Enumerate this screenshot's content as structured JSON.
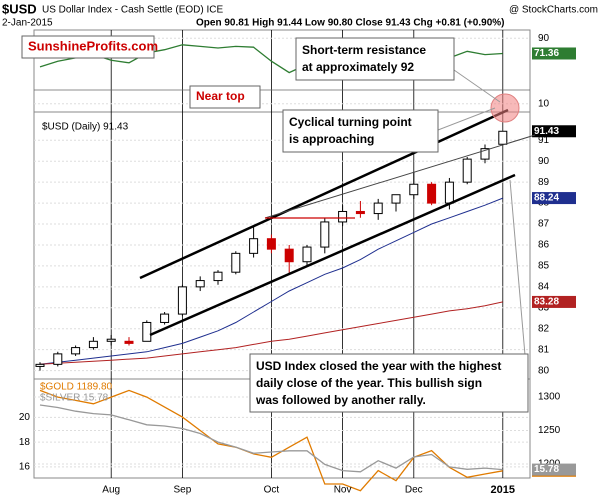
{
  "chart_data": [
    {
      "type": "line",
      "ylim": [
        0,
        100
      ],
      "yticks": [
        10,
        90
      ],
      "series": [
        {
          "color": "#2e7d32",
          "values": [
            55,
            62,
            66,
            70,
            63,
            60,
            72,
            76,
            82,
            80,
            78,
            80,
            79,
            62,
            48,
            58,
            70,
            74,
            66,
            70,
            72,
            74,
            55,
            66,
            74,
            70,
            71.36
          ]
        }
      ]
    },
    {
      "type": "candlestick",
      "title": "$USD",
      "subtitle": "US Dollar Index - Cash Settle (EOD) ICE",
      "date": "2-Jan-2015",
      "summary": "Open 90.81 High 91.44 Low 90.80 Close 91.43 Chg +0.81 (+0.90%)",
      "credit": "@ StockCharts.com",
      "legend": "$USD (Daily) 91.43",
      "up_color": "#000000",
      "down_color": "#cc0000",
      "open": [
        80.2,
        80.3,
        80.8,
        81.1,
        81.4,
        81.4,
        81.4,
        82.3,
        82.7,
        84.0,
        84.3,
        84.7,
        85.6,
        86.3,
        85.8,
        85.2,
        85.9,
        87.1,
        87.6,
        87.5,
        88.0,
        88.4,
        88.9,
        88.0,
        89.0,
        90.1,
        90.81
      ],
      "high": [
        80.4,
        80.9,
        81.2,
        81.6,
        81.7,
        81.6,
        82.4,
        82.8,
        84.1,
        84.5,
        84.8,
        85.7,
        86.9,
        86.5,
        86.0,
        86.0,
        87.3,
        87.9,
        88.1,
        88.2,
        88.4,
        89.5,
        89.0,
        89.2,
        90.2,
        90.8,
        91.44
      ],
      "low": [
        80.0,
        80.2,
        80.7,
        81.0,
        81.2,
        81.2,
        81.4,
        82.2,
        82.6,
        83.8,
        84.1,
        84.6,
        85.4,
        85.6,
        84.6,
        85.0,
        85.6,
        86.9,
        87.3,
        87.2,
        87.6,
        88.2,
        87.9,
        87.7,
        88.9,
        89.9,
        90.8
      ],
      "close": [
        80.3,
        80.8,
        81.1,
        81.4,
        81.5,
        81.3,
        82.3,
        82.7,
        84.0,
        84.3,
        84.7,
        85.6,
        86.3,
        85.8,
        85.2,
        85.9,
        87.1,
        87.6,
        87.5,
        88.0,
        88.4,
        88.9,
        88.0,
        89.0,
        90.1,
        90.6,
        91.43
      ],
      "overlays": [
        {
          "color": "#1f2f8f",
          "values": [
            80.3,
            80.4,
            80.5,
            80.6,
            80.7,
            80.8,
            80.9,
            81.1,
            81.3,
            81.6,
            81.9,
            82.3,
            82.8,
            83.3,
            83.8,
            84.2,
            84.6,
            84.9,
            85.3,
            85.8,
            86.2,
            86.6,
            87.0,
            87.3,
            87.6,
            87.9,
            88.24
          ]
        },
        {
          "color": "#b22222",
          "values": [
            80.3,
            80.35,
            80.4,
            80.45,
            80.5,
            80.55,
            80.6,
            80.7,
            80.8,
            80.9,
            81.0,
            81.1,
            81.25,
            81.4,
            81.5,
            81.65,
            81.8,
            81.95,
            82.1,
            82.25,
            82.4,
            82.55,
            82.7,
            82.85,
            82.95,
            83.1,
            83.28
          ]
        }
      ],
      "ylim": [
        79.6,
        92.35
      ],
      "yticks": [
        80,
        81,
        82,
        83,
        84,
        85,
        86,
        87,
        88,
        89,
        90,
        91
      ],
      "annotations": [
        [
          "SunshineProfits.com"
        ],
        [
          "Short-term resistance",
          "at approximately 92"
        ],
        [
          "Near top"
        ],
        [
          "Cyclical turning point",
          "is approaching"
        ],
        [
          "USD Index closed the year with the highest",
          "daily close of the year. This bullish sign",
          "was followed by another rally."
        ]
      ]
    },
    {
      "type": "line",
      "categories": [
        null,
        null,
        null,
        null,
        "Aug",
        null,
        null,
        null,
        "Sep",
        null,
        null,
        null,
        null,
        "Oct",
        null,
        null,
        null,
        "Nov",
        null,
        null,
        null,
        "Dec",
        null,
        null,
        null,
        null,
        "2015"
      ],
      "ylim": [
        15.1,
        23.1
      ],
      "yticks": [
        16,
        18,
        20
      ],
      "y2lim": [
        1179,
        1327
      ],
      "y2ticks": [
        1200,
        1250,
        1300
      ],
      "series": [
        {
          "name": "$GOLD 1189.80",
          "color": "#e07b00",
          "axis": "y2",
          "values": [
            1310,
            1300,
            1295,
            1290,
            1300,
            1310,
            1300,
            1285,
            1270,
            1250,
            1230,
            1225,
            1215,
            1210,
            1225,
            1240,
            1170,
            1170,
            1160,
            1190,
            1175,
            1210,
            1220,
            1195,
            1180,
            1185,
            1189.8
          ],
          "value_labels": [
            null,
            null,
            null,
            null,
            null,
            null,
            null,
            null,
            null,
            null,
            null,
            null,
            null,
            null,
            null,
            null,
            null,
            null,
            null,
            null,
            null,
            null,
            null,
            null,
            null,
            null,
            "1189.80"
          ]
        },
        {
          "name": "$SILVER 15.78",
          "color": "#999999",
          "values": [
            21,
            20.8,
            20.5,
            20.3,
            20.2,
            19.8,
            19.4,
            19.3,
            19.1,
            18.7,
            18.0,
            17.6,
            17.1,
            17.2,
            17.3,
            17.3,
            16.2,
            15.7,
            15.6,
            16.5,
            15.9,
            16.8,
            17.0,
            16.0,
            15.8,
            15.9,
            15.78
          ]
        }
      ]
    }
  ]
}
